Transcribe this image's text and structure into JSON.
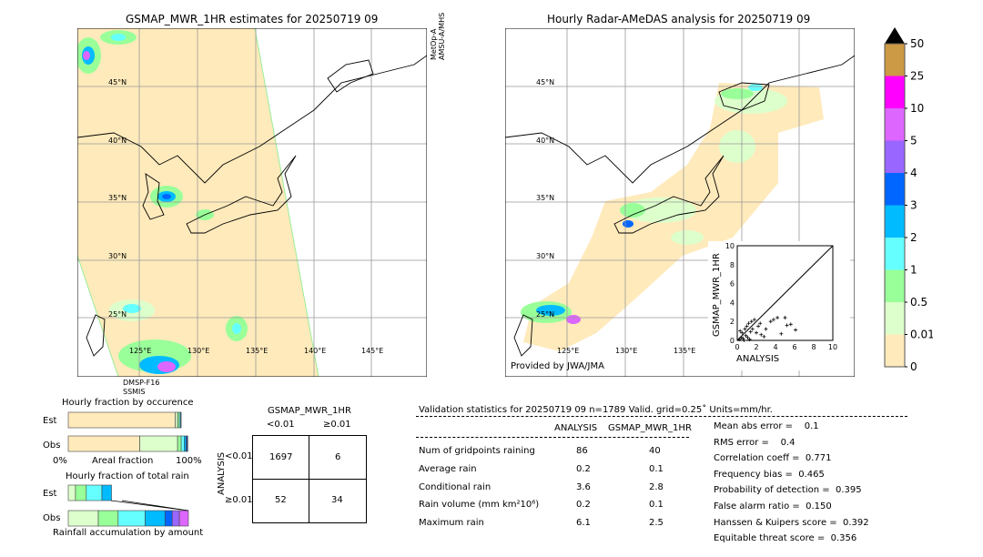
{
  "left_map": {
    "title": "GSMAP_MWR_1HR estimates for 20250719 09",
    "sensor_top": [
      "MetOp-A",
      "AMSU-A/MHS"
    ],
    "sensor_bottom": [
      "DMSP-F16",
      "SSMIS"
    ],
    "lat_labels": [
      "45°N",
      "40°N",
      "35°N",
      "30°N",
      "25°N"
    ],
    "lon_labels": [
      "125°E",
      "130°E",
      "135°E",
      "140°E",
      "145°E"
    ]
  },
  "right_map": {
    "title": "Hourly Radar-AMeDAS analysis for 20250719 09",
    "lat_labels": [
      "45°N",
      "40°N",
      "35°N",
      "30°N",
      "25°N"
    ],
    "lon_labels": [
      "125°E",
      "130°E",
      "135°E"
    ],
    "credit": "Provided by JWA/JMA"
  },
  "colorbar": {
    "labels": [
      "50",
      "25",
      "10",
      "5",
      "4",
      "3",
      "2",
      "1",
      "0.5",
      "0.01",
      "0"
    ],
    "colors": [
      "#cc9944",
      "#ff00ff",
      "#dd66ff",
      "#9966ff",
      "#0066ff",
      "#00bbff",
      "#66ffff",
      "#99ff99",
      "#ddffcc",
      "#ffeabb"
    ],
    "extend_color": "#000000"
  },
  "chart_data": [
    {
      "type": "scatter",
      "xlabel": "ANALYSIS",
      "ylabel": "GSMAP_MWR_1HR",
      "xlim": [
        0,
        10
      ],
      "ylim": [
        0,
        10
      ],
      "ticks": [
        "0",
        "2",
        "4",
        "6",
        "8",
        "10"
      ],
      "points": [
        [
          0.2,
          0.1
        ],
        [
          0.4,
          0.3
        ],
        [
          0.5,
          0.8
        ],
        [
          0.6,
          0.2
        ],
        [
          0.8,
          1.2
        ],
        [
          0.9,
          0.5
        ],
        [
          1.0,
          1.5
        ],
        [
          1.1,
          0.3
        ],
        [
          1.2,
          1.8
        ],
        [
          1.4,
          0.9
        ],
        [
          1.5,
          2.0
        ],
        [
          1.6,
          1.2
        ],
        [
          1.8,
          2.2
        ],
        [
          2.0,
          0.8
        ],
        [
          2.2,
          1.5
        ],
        [
          2.4,
          1.8
        ],
        [
          2.5,
          0.6
        ],
        [
          3.0,
          1.2
        ],
        [
          3.5,
          2.0
        ],
        [
          3.8,
          2.2
        ],
        [
          4.2,
          2.4
        ],
        [
          4.6,
          0.7
        ],
        [
          5.0,
          2.4
        ],
        [
          5.2,
          1.6
        ],
        [
          5.6,
          1.7
        ],
        [
          6.1,
          1.1
        ],
        [
          0.3,
          1.0
        ],
        [
          0.7,
          0.0
        ],
        [
          1.3,
          0.1
        ],
        [
          2.8,
          0.4
        ]
      ]
    },
    {
      "type": "bar",
      "title": "Hourly fraction by occurence",
      "xlabel": "Areal fraction",
      "categories": [
        "Est",
        "Obs"
      ],
      "x_tick_labels": [
        "0%",
        "100%"
      ],
      "series": [
        {
          "row": "Est",
          "fractions": [
            0.89,
            0.02,
            0.015,
            0.01,
            0.005
          ]
        },
        {
          "row": "Obs",
          "fractions": [
            0.595,
            0.315,
            0.03,
            0.025,
            0.015,
            0.01,
            0.005
          ]
        }
      ]
    },
    {
      "type": "bar",
      "title": "Hourly fraction of total rain",
      "xlabel": "Rainfall accumulation by amount",
      "categories": [
        "Est",
        "Obs"
      ],
      "series": [
        {
          "row": "Est",
          "fractions": [
            0.06,
            0.09,
            0.13,
            0.08
          ]
        },
        {
          "row": "Obs",
          "fractions": [
            0.25,
            0.165,
            0.225,
            0.165,
            0.06,
            0.06,
            0.075
          ]
        }
      ]
    }
  ],
  "contingency": {
    "title": "GSMAP_MWR_1HR",
    "col_headers": [
      "<0.01",
      "≥0.01"
    ],
    "row_axis": "ANALYSIS",
    "row_headers": [
      "<0.01",
      "≥0.01"
    ],
    "cells": [
      [
        "1697",
        "6"
      ],
      [
        "52",
        "34"
      ]
    ]
  },
  "stats": {
    "header": "Validation statistics for 20250719 09  n=1789 Valid. grid=0.25˚ Units=mm/hr.",
    "columns": [
      "ANALYSIS",
      "GSMAP_MWR_1HR"
    ],
    "rows": [
      {
        "label": "Num of gridpoints raining",
        "a": "86",
        "g": "40"
      },
      {
        "label": "Average rain",
        "a": "0.2",
        "g": "0.1"
      },
      {
        "label": "Conditional rain",
        "a": "3.6",
        "g": "2.8"
      },
      {
        "label": "Rain volume (mm km²10⁶)",
        "a": "0.2",
        "g": "0.1"
      },
      {
        "label": "Maximum rain",
        "a": "6.1",
        "g": "2.5"
      }
    ],
    "scores": [
      "Mean abs error =    0.1",
      "RMS error =    0.4",
      "Correlation coeff =  0.771",
      "Frequency bias =  0.465",
      "Probability of detection =  0.395",
      "False alarm ratio =  0.150",
      "Hanssen & Kuipers score =  0.392",
      "Equitable threat score =  0.356"
    ]
  }
}
